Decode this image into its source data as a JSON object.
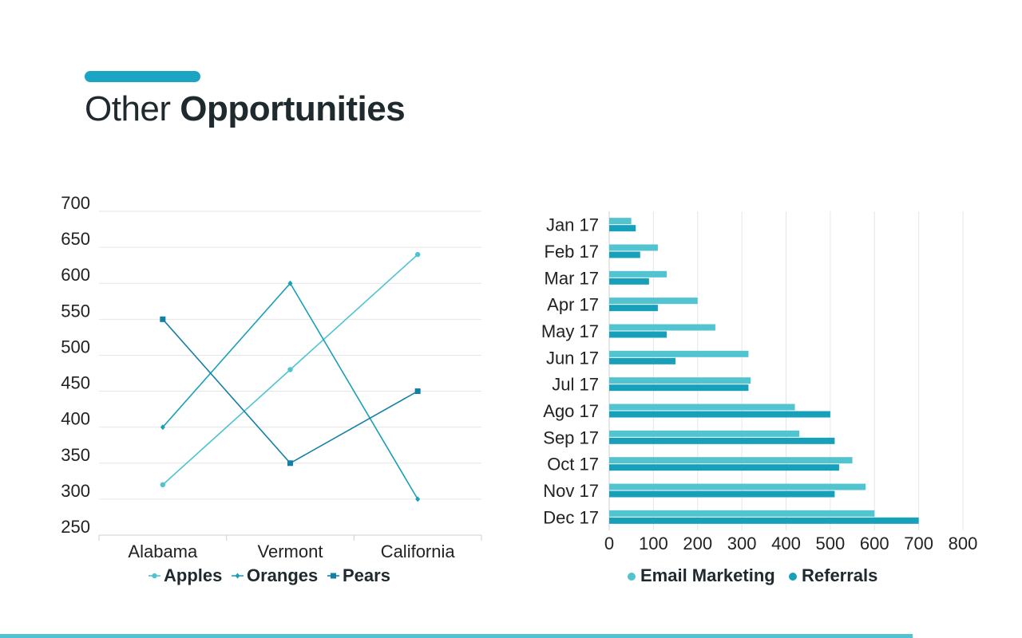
{
  "header": {
    "title_light": "Other",
    "title_bold": "Opportunities"
  },
  "colors": {
    "accent": "#1ba4c3",
    "apples": "#4fc3d1",
    "oranges": "#1a9fb8",
    "pears": "#137fa6",
    "email_marketing": "#52c4cf",
    "referrals": "#17a0ba",
    "grid": "#e6e6e6",
    "bottom_rule": "#4fc3d1"
  },
  "chart_data": [
    {
      "type": "line",
      "categories": [
        "Alabama",
        "Vermont",
        "California"
      ],
      "ylim": [
        250,
        700
      ],
      "yticks": [
        "700",
        "650",
        "600",
        "550",
        "500",
        "450",
        "400",
        "350",
        "300",
        "250"
      ],
      "grid": true,
      "legend_position": "bottom",
      "series": [
        {
          "name": "Apples",
          "values": [
            320,
            480,
            640
          ],
          "marker": "circle"
        },
        {
          "name": "Oranges",
          "values": [
            400,
            600,
            300
          ],
          "marker": "diamond"
        },
        {
          "name": "Pears",
          "values": [
            550,
            350,
            450
          ],
          "marker": "square"
        }
      ]
    },
    {
      "type": "bar",
      "orientation": "horizontal",
      "categories": [
        "Jan 17",
        "Feb 17",
        "Mar 17",
        "Apr 17",
        "May 17",
        "Jun 17",
        "Jul 17",
        "Ago 17",
        "Sep 17",
        "Oct 17",
        "Nov 17",
        "Dec 17"
      ],
      "xlim": [
        0,
        800
      ],
      "xticks": [
        "0",
        "100",
        "200",
        "300",
        "400",
        "500",
        "600",
        "700",
        "800"
      ],
      "grid": true,
      "legend_position": "bottom",
      "series": [
        {
          "name": "Email Marketing",
          "values": [
            50,
            110,
            130,
            200,
            240,
            315,
            320,
            420,
            430,
            550,
            580,
            600
          ]
        },
        {
          "name": "Referrals",
          "values": [
            60,
            70,
            90,
            110,
            130,
            150,
            315,
            500,
            510,
            520,
            510,
            700
          ]
        }
      ]
    }
  ]
}
